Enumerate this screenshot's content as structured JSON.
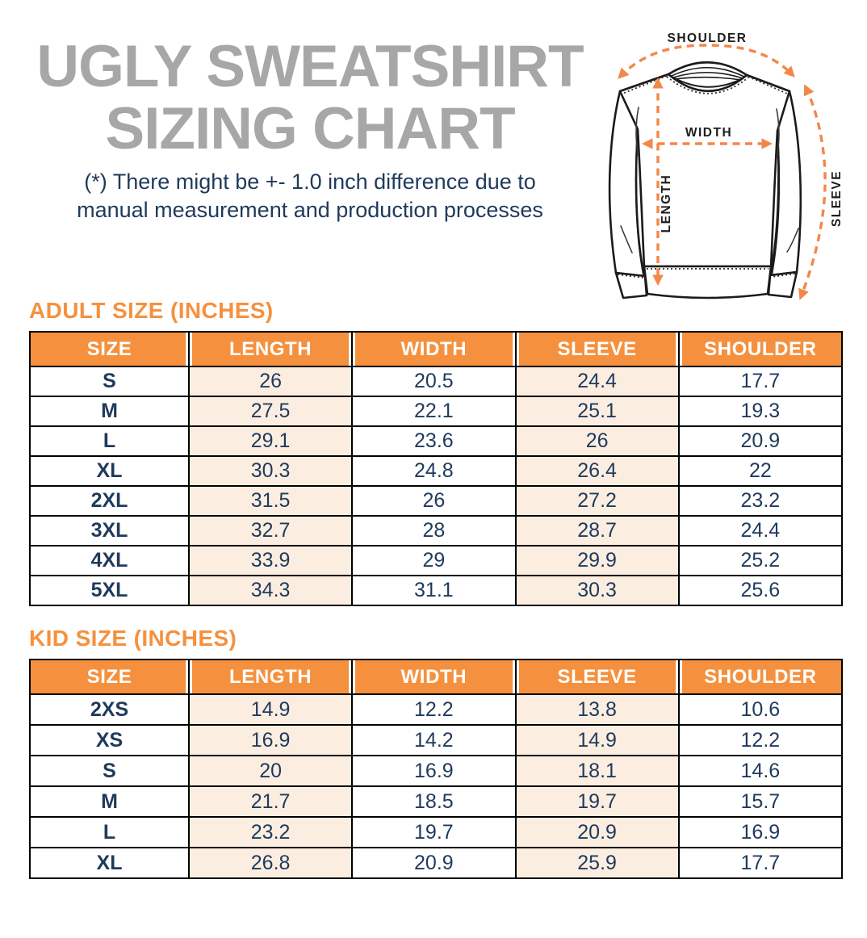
{
  "header": {
    "title_line1": "UGLY SWEATSHIRT",
    "title_line2": "SIZING CHART",
    "note_line1": "(*) There might be +- 1.0 inch difference due to",
    "note_line2": "manual measurement and production processes"
  },
  "diagram": {
    "shoulder_label": "SHOULDER",
    "width_label": "WIDTH",
    "length_label": "LENGTH",
    "sleeve_label": "SLEEVE"
  },
  "adult_table": {
    "heading": "ADULT SIZE (INCHES)",
    "columns": [
      "SIZE",
      "LENGTH",
      "WIDTH",
      "SLEEVE",
      "SHOULDER"
    ],
    "rows": [
      [
        "S",
        "26",
        "20.5",
        "24.4",
        "17.7"
      ],
      [
        "M",
        "27.5",
        "22.1",
        "25.1",
        "19.3"
      ],
      [
        "L",
        "29.1",
        "23.6",
        "26",
        "20.9"
      ],
      [
        "XL",
        "30.3",
        "24.8",
        "26.4",
        "22"
      ],
      [
        "2XL",
        "31.5",
        "26",
        "27.2",
        "23.2"
      ],
      [
        "3XL",
        "32.7",
        "28",
        "28.7",
        "24.4"
      ],
      [
        "4XL",
        "33.9",
        "29",
        "29.9",
        "25.2"
      ],
      [
        "5XL",
        "34.3",
        "31.1",
        "30.3",
        "25.6"
      ]
    ]
  },
  "kid_table": {
    "heading": "KID SIZE (INCHES)",
    "columns": [
      "SIZE",
      "LENGTH",
      "WIDTH",
      "SLEEVE",
      "SHOULDER"
    ],
    "rows": [
      [
        "2XS",
        "14.9",
        "12.2",
        "13.8",
        "10.6"
      ],
      [
        "XS",
        "16.9",
        "14.2",
        "14.9",
        "12.2"
      ],
      [
        "S",
        "20",
        "16.9",
        "18.1",
        "14.6"
      ],
      [
        "M",
        "21.7",
        "18.5",
        "19.7",
        "15.7"
      ],
      [
        "L",
        "23.2",
        "19.7",
        "20.9",
        "16.9"
      ],
      [
        "XL",
        "26.8",
        "20.9",
        "25.9",
        "17.7"
      ]
    ]
  },
  "colors": {
    "heading_orange": "#F5913E",
    "arrow_orange": "#F2874B",
    "navy_text": "#1F3A5C",
    "title_gray": "#A7A7A7",
    "stripe_peach": "#FBEEE1",
    "table_border": "#000000"
  }
}
